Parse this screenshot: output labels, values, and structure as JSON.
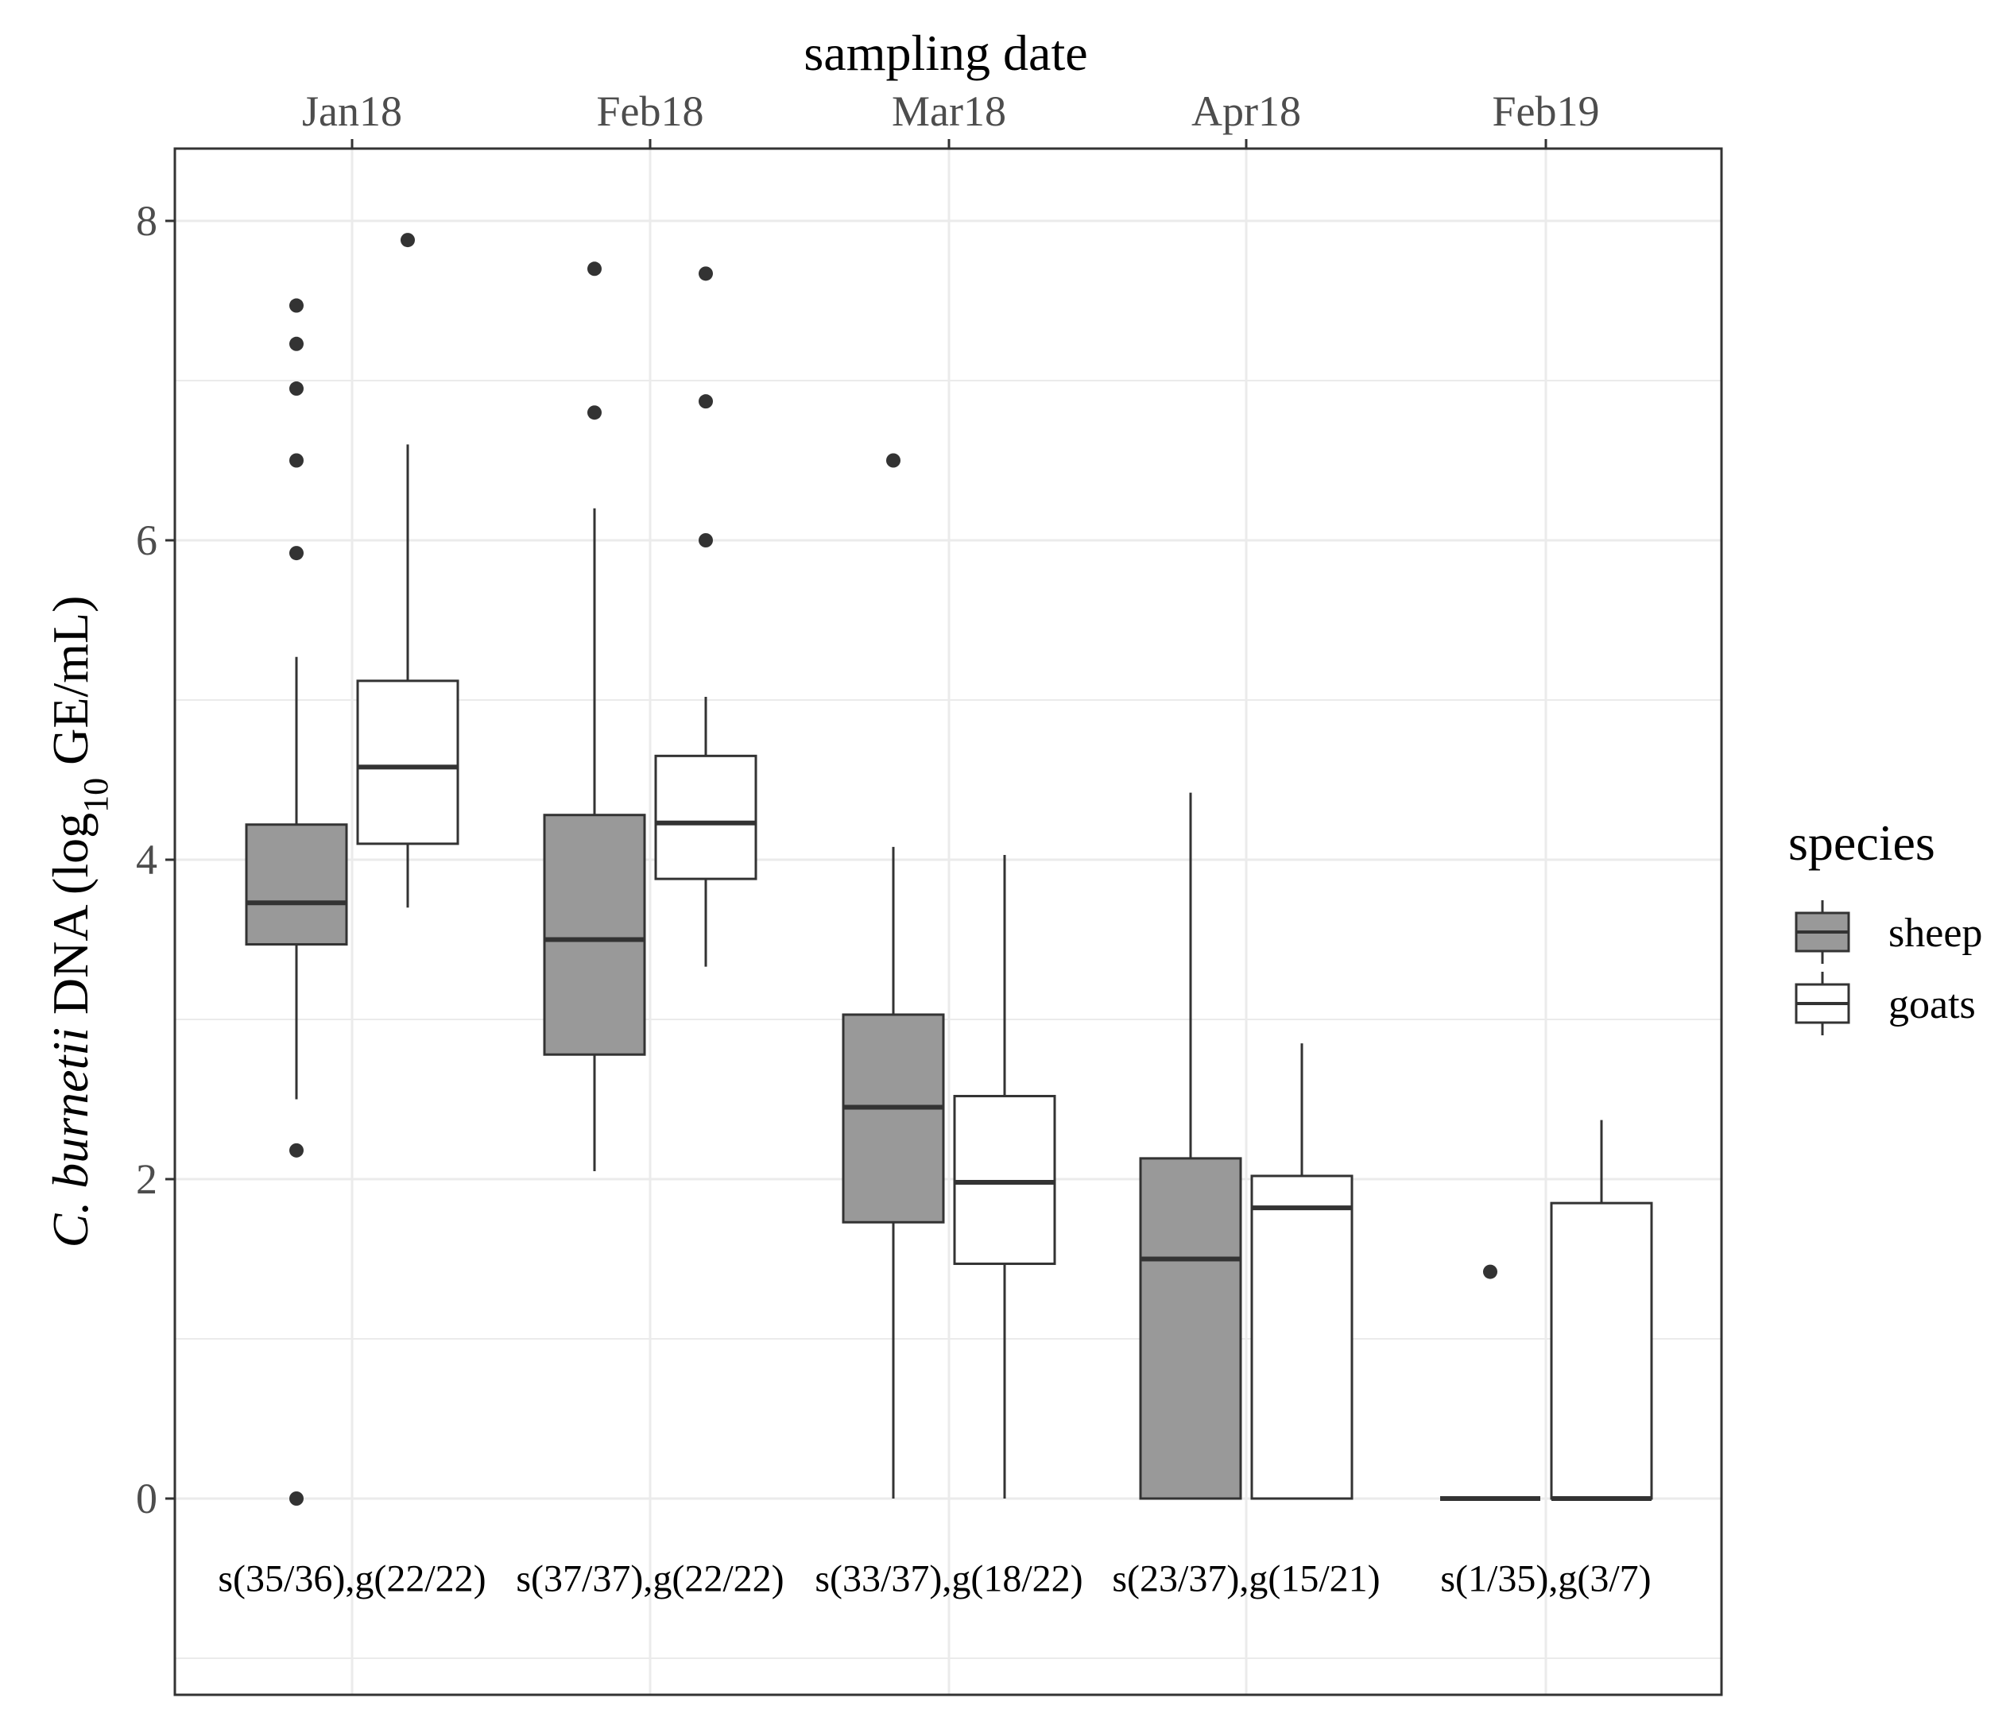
{
  "chart_data": {
    "type": "boxplot",
    "x_axis_title": "sampling date",
    "x_axis_position": "top",
    "y_axis_title": {
      "italic_part": "C. burnetii",
      "part1": " DNA (log",
      "subscript": "10",
      "part2": " GE/mL)"
    },
    "ylim": [
      -1,
      8.4
    ],
    "y_ticks": [
      0,
      2,
      4,
      6,
      8
    ],
    "y_tick_labels": [
      "0",
      "2",
      "4",
      "6",
      "8"
    ],
    "grid": true,
    "categories": [
      "Jan18",
      "Feb18",
      "Mar18",
      "Apr18",
      "Feb19"
    ],
    "annotation_y": -0.5,
    "annotations": [
      "s(35/36),g(22/22)",
      "s(37/37),g(22/22)",
      "s(33/37),g(18/22)",
      "s(23/37),g(15/21)",
      "s(1/35),g(3/7)"
    ],
    "legend": {
      "title": "species",
      "placement": "right",
      "entries": [
        {
          "name": "sheep",
          "color": "#999999"
        },
        {
          "name": "goats",
          "color": "#ffffff"
        }
      ]
    },
    "series": [
      {
        "name": "sheep",
        "color": "#999999",
        "boxes": [
          {
            "category": "Jan18",
            "lower_whisker": 2.5,
            "q1": 3.47,
            "median": 3.73,
            "q3": 4.22,
            "upper_whisker": 5.27,
            "outliers": [
              7.47,
              7.23,
              6.95,
              6.5,
              5.92,
              2.18,
              0
            ]
          },
          {
            "category": "Feb18",
            "lower_whisker": 2.05,
            "q1": 2.78,
            "median": 3.5,
            "q3": 4.28,
            "upper_whisker": 6.2,
            "outliers": [
              7.7,
              6.8
            ]
          },
          {
            "category": "Mar18",
            "lower_whisker": 0,
            "q1": 1.73,
            "median": 2.45,
            "q3": 3.03,
            "upper_whisker": 4.08,
            "outliers": [
              6.5
            ]
          },
          {
            "category": "Apr18",
            "lower_whisker": 0,
            "q1": 0,
            "median": 1.5,
            "q3": 2.13,
            "upper_whisker": 4.42,
            "outliers": []
          },
          {
            "category": "Feb19",
            "lower_whisker": 0,
            "q1": 0,
            "median": 0,
            "q3": 0,
            "upper_whisker": 0,
            "outliers": [
              1.42
            ]
          }
        ]
      },
      {
        "name": "goats",
        "color": "#ffffff",
        "boxes": [
          {
            "category": "Jan18",
            "lower_whisker": 3.7,
            "q1": 4.1,
            "median": 4.58,
            "q3": 5.12,
            "upper_whisker": 6.6,
            "outliers": [
              7.88
            ]
          },
          {
            "category": "Feb18",
            "lower_whisker": 3.33,
            "q1": 3.88,
            "median": 4.23,
            "q3": 4.65,
            "upper_whisker": 5.02,
            "outliers": [
              7.67,
              6.87,
              6.0
            ]
          },
          {
            "category": "Mar18",
            "lower_whisker": 0,
            "q1": 1.47,
            "median": 1.98,
            "q3": 2.52,
            "upper_whisker": 4.03,
            "outliers": []
          },
          {
            "category": "Apr18",
            "lower_whisker": 0,
            "q1": 0,
            "median": 1.82,
            "q3": 2.02,
            "upper_whisker": 2.85,
            "outliers": []
          },
          {
            "category": "Feb19",
            "lower_whisker": 0,
            "q1": 0,
            "median": 0,
            "q3": 1.85,
            "upper_whisker": 2.37,
            "outliers": []
          }
        ]
      }
    ]
  }
}
